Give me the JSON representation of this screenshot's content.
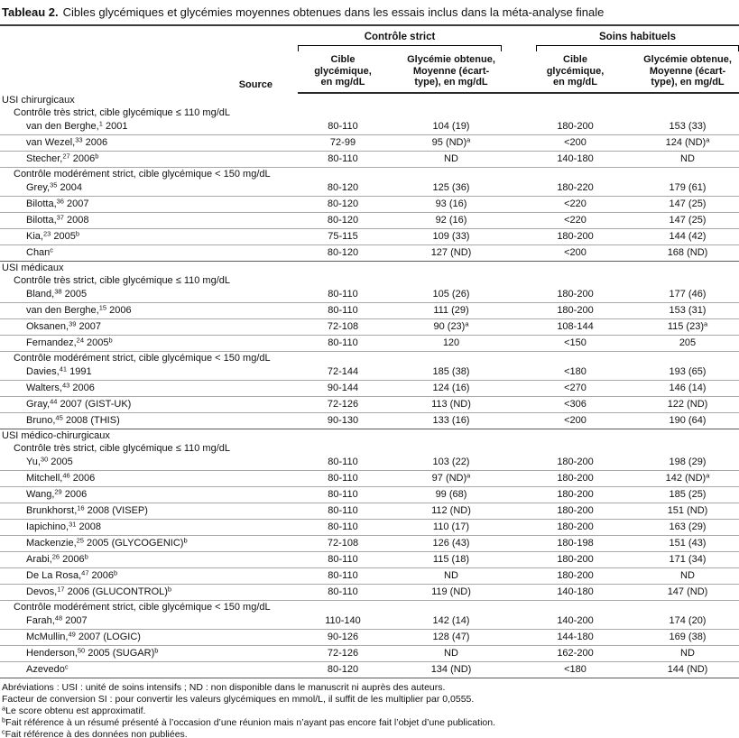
{
  "title": {
    "label": "Tableau 2.",
    "text": "Cibles glycémiques et glycémies moyennes obtenues dans les essais inclus dans la méta-analyse finale"
  },
  "header": {
    "source_label": "Source",
    "groups": [
      {
        "label": "Contrôle strict"
      },
      {
        "label": "Soins habituels"
      }
    ],
    "columns": [
      "Cible\nglycémique,\nen mg/dL",
      "Glycémie obtenue,\nMoyenne (écart-\ntype), en mg/dL",
      "Cible\nglycémique,\nen mg/dL",
      "Glycémie obtenue,\nMoyenne (écart-\ntype), en mg/dL"
    ]
  },
  "rows": [
    {
      "type": "section",
      "label": "USI chirurgicaux"
    },
    {
      "type": "subsection",
      "label": "Contrôle très strict, cible glycémique ≤ 110 mg/dL"
    },
    {
      "type": "data",
      "source": "van den Berghe,^{1} 2001",
      "cells": [
        "80-110",
        "104 (19)",
        "180-200",
        "153 (33)"
      ]
    },
    {
      "type": "data",
      "source": "van Wezel,^{33} 2006",
      "cells": [
        "72-99",
        "95 (ND)^{a}",
        "<200",
        "124 (ND)^{a}"
      ]
    },
    {
      "type": "data",
      "source": "Stecher,^{27} 2006^{b}",
      "cells": [
        "80-110",
        "ND",
        "140-180",
        "ND"
      ]
    },
    {
      "type": "subsection",
      "label": "Contrôle modérément strict, cible glycémique < 150 mg/dL"
    },
    {
      "type": "data",
      "source": "Grey,^{35} 2004",
      "cells": [
        "80-120",
        "125 (36)",
        "180-220",
        "179 (61)"
      ]
    },
    {
      "type": "data",
      "source": "Bilotta,^{36} 2007",
      "cells": [
        "80-120",
        "93 (16)",
        "<220",
        "147 (25)"
      ]
    },
    {
      "type": "data",
      "source": "Bilotta,^{37} 2008",
      "cells": [
        "80-120",
        "92 (16)",
        "<220",
        "147 (25)"
      ]
    },
    {
      "type": "data",
      "source": "Kia,^{23} 2005^{b}",
      "cells": [
        "75-115",
        "109 (33)",
        "180-200",
        "144 (42)"
      ]
    },
    {
      "type": "data",
      "source": "Chan^{c}",
      "cells": [
        "80-120",
        "127 (ND)",
        "<200",
        "168 (ND)"
      ],
      "end": true
    },
    {
      "type": "section",
      "label": "USI médicaux"
    },
    {
      "type": "subsection",
      "label": "Contrôle très strict, cible glycémique ≤ 110 mg/dL"
    },
    {
      "type": "data",
      "source": "Bland,^{38} 2005",
      "cells": [
        "80-110",
        "105 (26)",
        "180-200",
        "177 (46)"
      ]
    },
    {
      "type": "data",
      "source": "van den Berghe,^{15} 2006",
      "cells": [
        "80-110",
        "111 (29)",
        "180-200",
        "153 (31)"
      ]
    },
    {
      "type": "data",
      "source": "Oksanen,^{39} 2007",
      "cells": [
        "72-108",
        "90 (23)^{a}",
        "108-144",
        "115 (23)^{a}"
      ]
    },
    {
      "type": "data",
      "source": "Fernandez,^{24} 2005^{b}",
      "cells": [
        "80-110",
        "120",
        "<150",
        "205"
      ]
    },
    {
      "type": "subsection",
      "label": "Contrôle modérément strict, cible glycémique < 150 mg/dL"
    },
    {
      "type": "data",
      "source": "Davies,^{41} 1991",
      "cells": [
        "72-144",
        "185 (38)",
        "<180",
        "193 (65)"
      ]
    },
    {
      "type": "data",
      "source": "Walters,^{43} 2006",
      "cells": [
        "90-144",
        "124 (16)",
        "<270",
        "146 (14)"
      ]
    },
    {
      "type": "data",
      "source": "Gray,^{44} 2007 (GIST-UK)",
      "cells": [
        "72-126",
        "113 (ND)",
        "<306",
        "122 (ND)"
      ]
    },
    {
      "type": "data",
      "source": "Bruno,^{45} 2008 (THIS)",
      "cells": [
        "90-130",
        "133 (16)",
        "<200",
        "190 (64)"
      ],
      "end": true
    },
    {
      "type": "section",
      "label": "USI médico-chirurgicaux"
    },
    {
      "type": "subsection",
      "label": "Contrôle très strict, cible glycémique ≤ 110 mg/dL"
    },
    {
      "type": "data",
      "source": "Yu,^{30} 2005",
      "cells": [
        "80-110",
        "103 (22)",
        "180-200",
        "198 (29)"
      ]
    },
    {
      "type": "data",
      "source": "Mitchell,^{46} 2006",
      "cells": [
        "80-110",
        "97 (ND)^{a}",
        "180-200",
        "142 (ND)^{a}"
      ]
    },
    {
      "type": "data",
      "source": "Wang,^{29} 2006",
      "cells": [
        "80-110",
        "99 (68)",
        "180-200",
        "185 (25)"
      ]
    },
    {
      "type": "data",
      "source": "Brunkhorst,^{16} 2008 (VISEP)",
      "cells": [
        "80-110",
        "112 (ND)",
        "180-200",
        "151 (ND)"
      ]
    },
    {
      "type": "data",
      "source": "Iapichino,^{31} 2008",
      "cells": [
        "80-110",
        "110 (17)",
        "180-200",
        "163 (29)"
      ]
    },
    {
      "type": "data",
      "source": "Mackenzie,^{25} 2005 (GLYCOGENIC)^{b}",
      "cells": [
        "72-108",
        "126 (43)",
        "180-198",
        "151 (43)"
      ]
    },
    {
      "type": "data",
      "source": "Arabi,^{26} 2006^{b}",
      "cells": [
        "80-110",
        "115 (18)",
        "180-200",
        "171 (34)"
      ]
    },
    {
      "type": "data",
      "source": "De La Rosa,^{47} 2006^{b}",
      "cells": [
        "80-110",
        "ND",
        "180-200",
        "ND"
      ]
    },
    {
      "type": "data",
      "source": "Devos,^{17} 2006 (GLUCONTROL)^{b}",
      "cells": [
        "80-110",
        "119 (ND)",
        "140-180",
        "147 (ND)"
      ]
    },
    {
      "type": "subsection",
      "label": "Contrôle modérément strict, cible glycémique < 150 mg/dL"
    },
    {
      "type": "data",
      "source": "Farah,^{48} 2007",
      "cells": [
        "110-140",
        "142 (14)",
        "140-200",
        "174 (20)"
      ]
    },
    {
      "type": "data",
      "source": "McMullin,^{49} 2007 (LOGIC)",
      "cells": [
        "90-126",
        "128 (47)",
        "144-180",
        "169 (38)"
      ]
    },
    {
      "type": "data",
      "source": "Henderson,^{50} 2005 (SUGAR)^{b}",
      "cells": [
        "72-126",
        "ND",
        "162-200",
        "ND"
      ]
    },
    {
      "type": "data",
      "source": "Azevedo^{c}",
      "cells": [
        "80-120",
        "134 (ND)",
        "<180",
        "144 (ND)"
      ],
      "end": true
    }
  ],
  "footnotes": [
    "Abréviations : USI : unité de soins intensifs ; ND : non disponible dans le manuscrit ni auprès des auteurs.",
    "Facteur de conversion SI : pour convertir les valeurs glycémiques en mmol/L, il suffit de les multiplier par 0,0555.",
    "^{a}Le score obtenu est approximatif.",
    "^{b}Fait référence à un résumé présenté à l’occasion d’une réunion mais n’ayant pas encore fait l’objet d’une publication.",
    "^{c}Fait référence à des données non publiées."
  ]
}
